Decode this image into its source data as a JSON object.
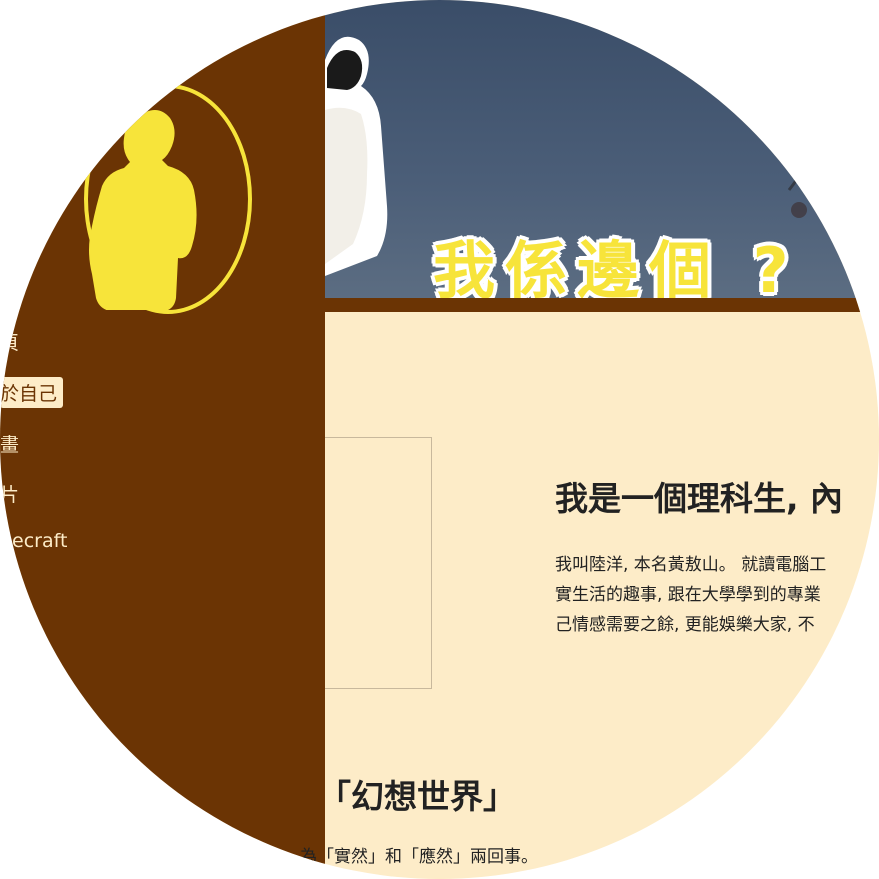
{
  "sidebar": {
    "nav": [
      {
        "label": "頁"
      },
      {
        "label": "於自己",
        "active": true
      },
      {
        "label": "畫"
      },
      {
        "label": "片"
      },
      {
        "label": "necraft"
      }
    ]
  },
  "hero": {
    "title": "我係邊個 ?"
  },
  "main": {
    "intro_heading": "我是一個理科生, 內",
    "intro_lines": [
      "我叫陸洋, 本名黃敖山。 就讀電腦工",
      "實生活的趣事, 跟在大學學到的專業",
      "己情感需要之餘, 更能娛樂大家, 不"
    ],
    "section_heading": "「幻想世界」",
    "section_text": "為「實然」和「應然」兩回事。"
  },
  "colors": {
    "sidebar_bg": "#6b3404",
    "content_bg": "#fdecc8",
    "accent_yellow": "#f7e43a"
  }
}
